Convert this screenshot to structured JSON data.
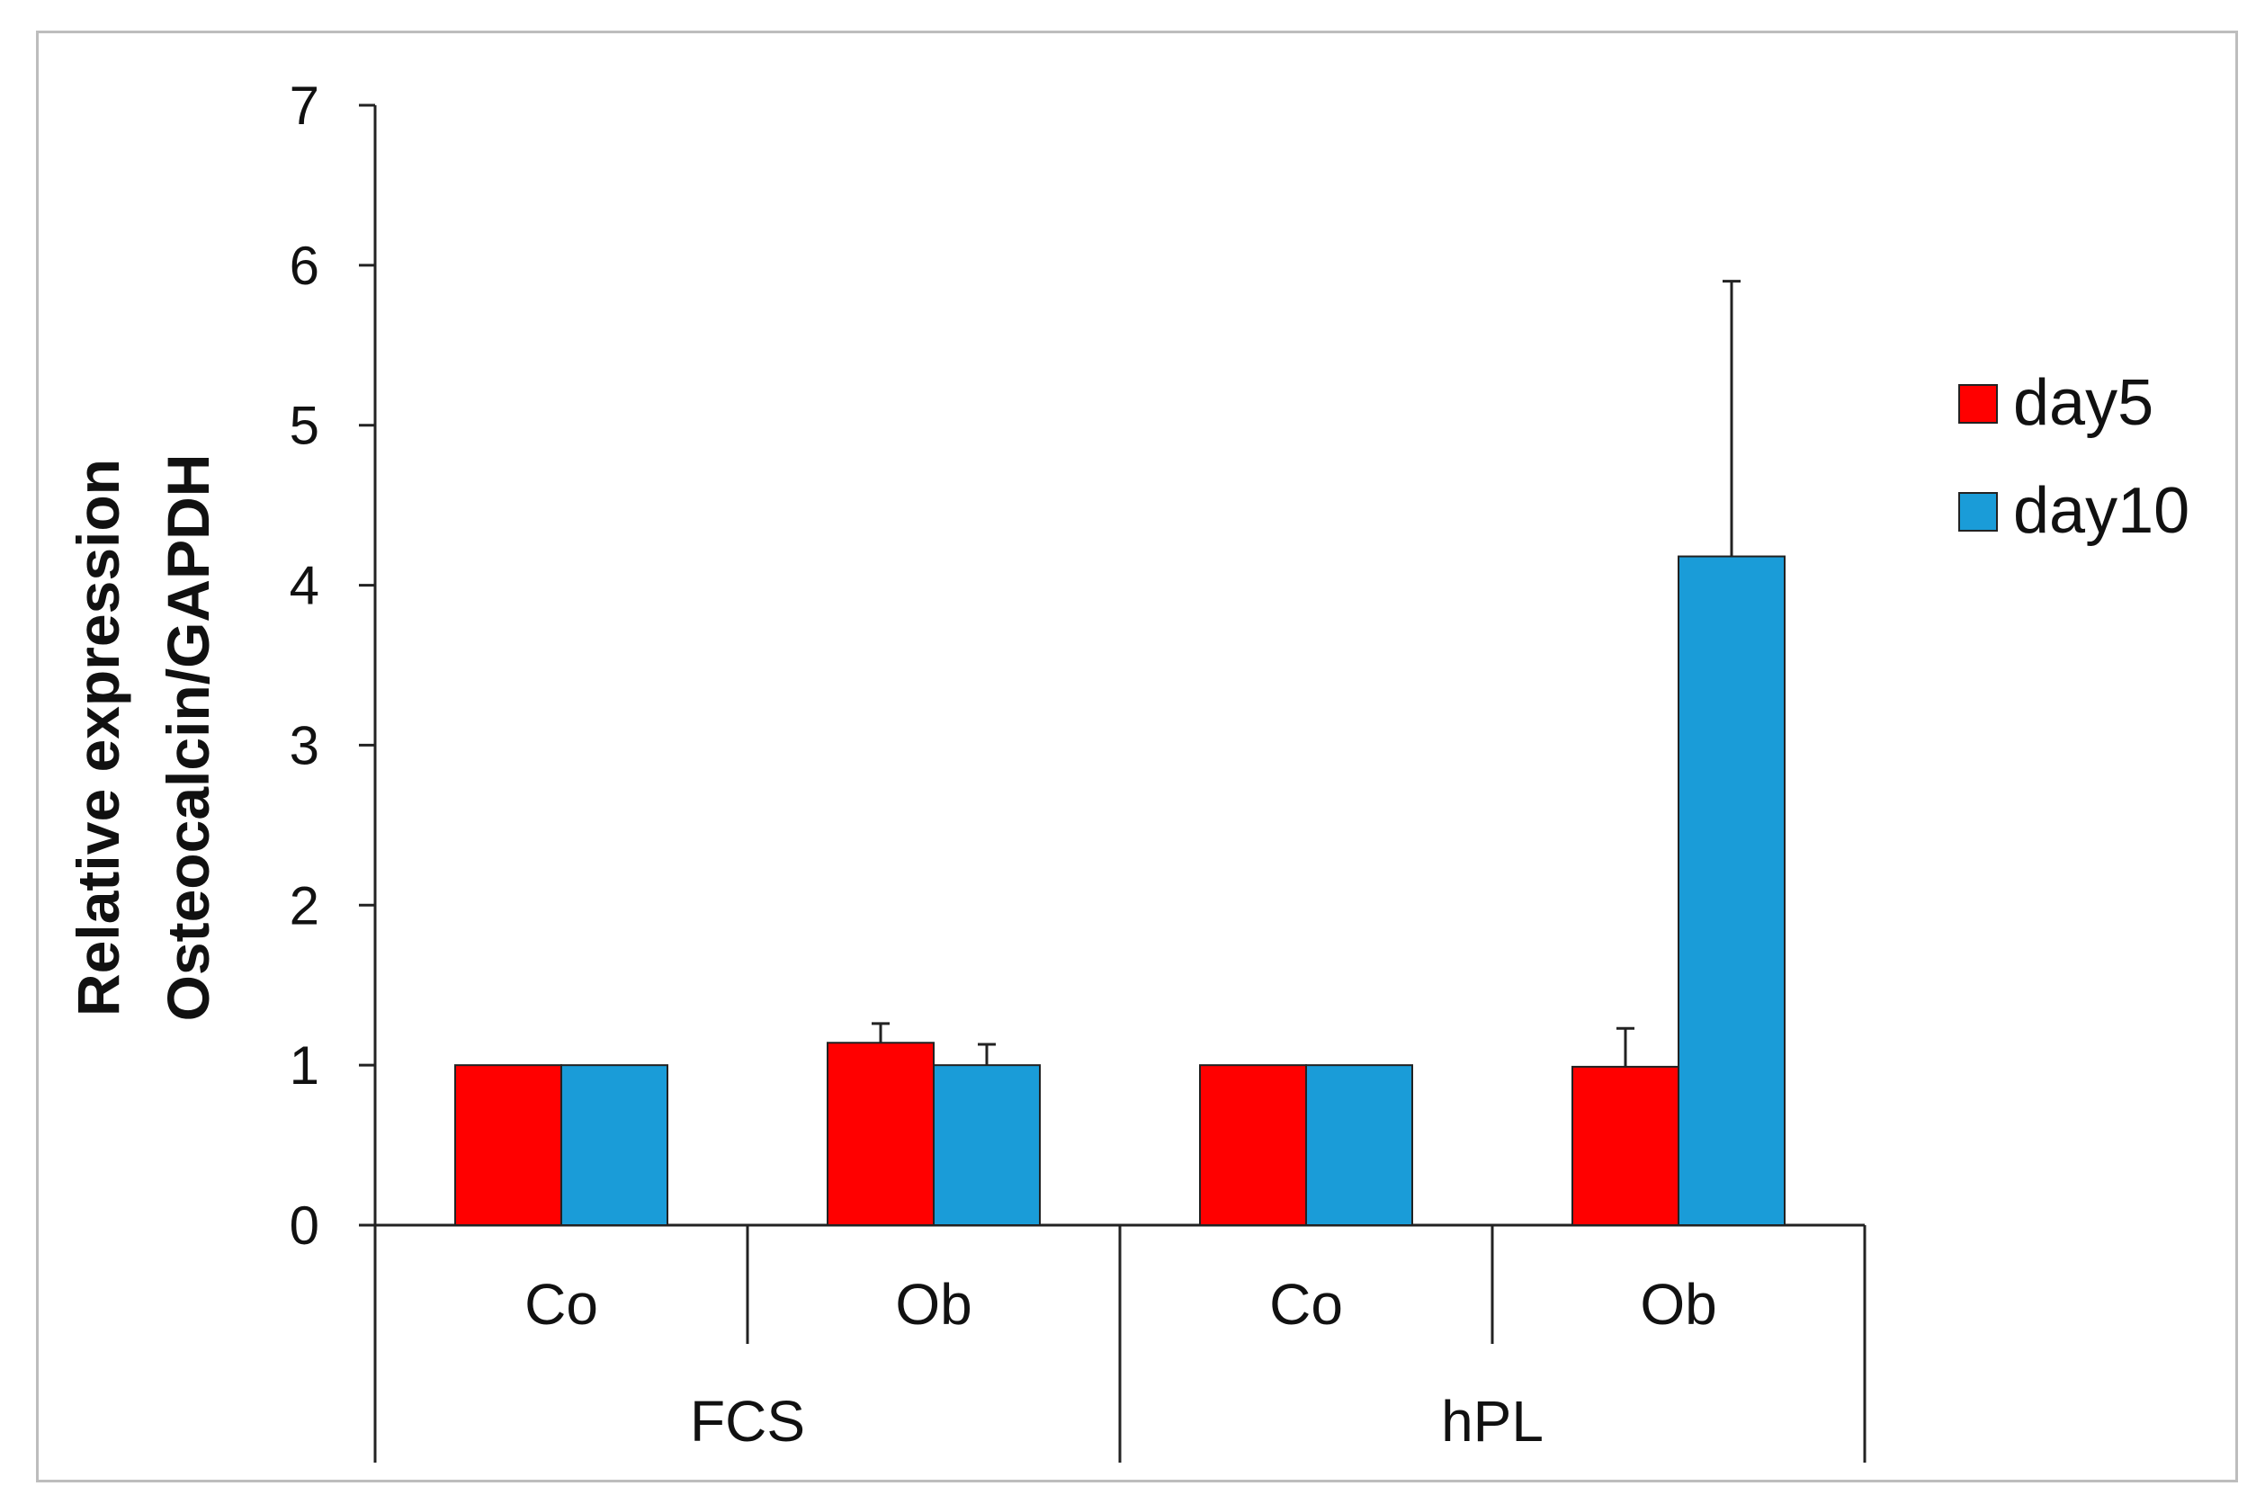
{
  "chart_data": {
    "type": "bar",
    "title": "",
    "ylabel_lines": [
      "Relative  expression",
      "Osteocalcin/GAPDH"
    ],
    "ylim": [
      0,
      7
    ],
    "yticks": [
      0,
      1,
      2,
      3,
      4,
      5,
      6,
      7
    ],
    "grid": false,
    "legend_position": "right",
    "categories": [
      "Co",
      "Ob",
      "Co",
      "Ob"
    ],
    "groups": [
      {
        "label": "FCS",
        "categories": [
          "Co",
          "Ob"
        ]
      },
      {
        "label": "hPL",
        "categories": [
          "Co",
          "Ob"
        ]
      }
    ],
    "series": [
      {
        "name": "day5",
        "color": "#ff0000",
        "values": [
          1.0,
          1.14,
          1.0,
          0.99
        ],
        "errors": [
          0,
          0.12,
          0,
          0.24
        ]
      },
      {
        "name": "day10",
        "color": "#1a9cd8",
        "values": [
          1.0,
          1.0,
          1.0,
          4.18
        ],
        "errors": [
          0,
          0.13,
          0,
          1.72
        ]
      }
    ]
  }
}
